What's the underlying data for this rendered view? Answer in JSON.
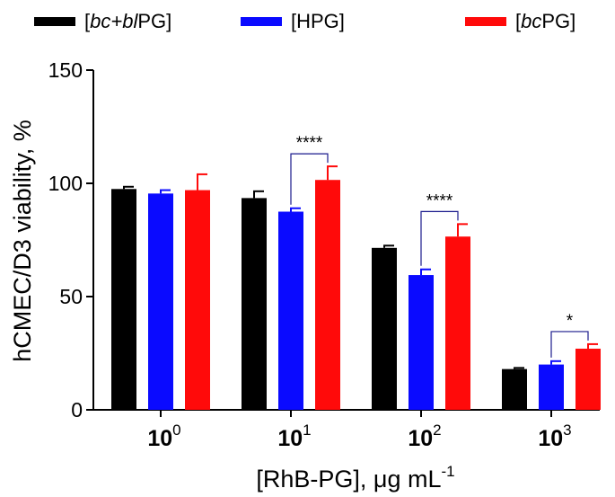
{
  "chart_data": {
    "type": "bar",
    "ylabel": "hCMEC/D3 viability, %",
    "xlabel_main": "[RhB-PG], ",
    "xlabel_unit": "μg mL",
    "xlabel_exp": "-1",
    "ylim": [
      0,
      150
    ],
    "yticks": [
      0,
      50,
      100,
      150
    ],
    "categories": [
      {
        "base": "10",
        "exp": "0"
      },
      {
        "base": "10",
        "exp": "1"
      },
      {
        "base": "10",
        "exp": "2"
      },
      {
        "base": "10",
        "exp": "3"
      }
    ],
    "series": [
      {
        "name": "[bc+bl PG]",
        "legend": {
          "pre": "[",
          "ital": "bc+bl",
          "post": "PG]"
        },
        "color": "#000000",
        "values": [
          97.5,
          93.5,
          71.5,
          18
        ],
        "errors": [
          1,
          3,
          1,
          0.5
        ]
      },
      {
        "name": "[HPG]",
        "legend": {
          "pre": "[HPG]",
          "ital": "",
          "post": ""
        },
        "color": "#0a0aff",
        "values": [
          95.5,
          87.5,
          59.5,
          20
        ],
        "errors": [
          1.5,
          1.5,
          2.5,
          1.5
        ]
      },
      {
        "name": "[bcPG]",
        "legend": {
          "pre": "[",
          "ital": "bc",
          "post": "PG]"
        },
        "color": "#ff0a0a",
        "values": [
          97,
          101.5,
          76.5,
          27
        ],
        "errors": [
          7,
          6,
          5.5,
          2
        ]
      }
    ],
    "annotations": [
      {
        "group": 1,
        "from": 1,
        "to": 2,
        "label": "****"
      },
      {
        "group": 2,
        "from": 1,
        "to": 2,
        "label": "****"
      },
      {
        "group": 3,
        "from": 1,
        "to": 2,
        "label": "*"
      }
    ]
  }
}
